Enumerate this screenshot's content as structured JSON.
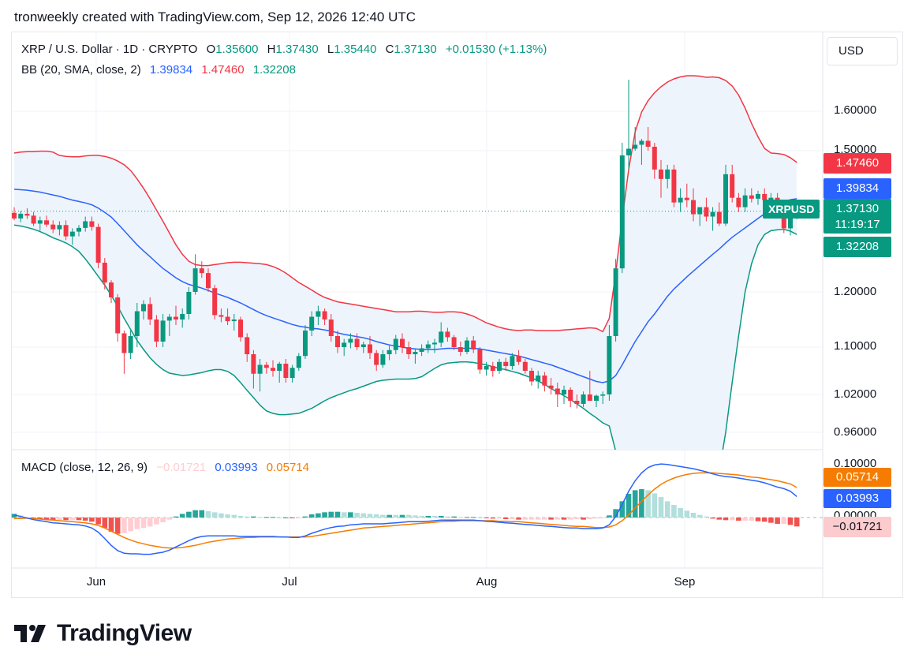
{
  "header": {
    "text": "tronweekly created with TradingView.com, Sep 12, 2026 12:40 UTC"
  },
  "legend": {
    "symbol": "XRP / U.S. Dollar · 1D · CRYPTO",
    "o_label": "O",
    "o": "1.35600",
    "h_label": "H",
    "h": "1.37430",
    "l_label": "L",
    "l": "1.35440",
    "c_label": "C",
    "c": "1.37130",
    "change": "+0.01530 (+1.13%)",
    "bb_label": "BB (20, SMA, close, 2)",
    "bb_mid": "1.39834",
    "bb_upper": "1.47460",
    "bb_lower": "1.32208",
    "macd_label": "MACD (close, 12, 26, 9)",
    "macd_hist": "−0.01721",
    "macd_value": "0.03993",
    "macd_signal": "0.05714"
  },
  "currency_button": "USD",
  "price_tags": {
    "upper": "1.47460",
    "middle": "1.39834",
    "price": "1.37130",
    "countdown": "11:19:17",
    "lower": "1.32208",
    "symbol": "XRPUSD"
  },
  "macd_tags": {
    "signal": "0.05714",
    "macd": "0.03993",
    "hist": "−0.01721"
  },
  "y_ticks": [
    "1.60000",
    "1.50000",
    "1.20000",
    "1.10000",
    "1.02000",
    "0.96000"
  ],
  "macd_ticks": [
    "0.10000",
    "0.00000"
  ],
  "x_ticks": [
    "Jun",
    "Jul",
    "Aug",
    "Sep"
  ],
  "colors": {
    "up": "#089981",
    "down": "#f23645",
    "bb_mid": "#2962ff",
    "bb_upper": "#f23645",
    "bb_lower": "#089981",
    "bb_fill": "#eef4fc",
    "macd": "#2962ff",
    "signal": "#f57c00",
    "hist_up_strong": "#26a69a",
    "hist_up_weak": "#b2dfdb",
    "hist_down_strong": "#ef5350",
    "hist_down_weak": "#ffcdd2"
  },
  "chart_data": {
    "type": "candlestick",
    "title": "XRP / U.S. Dollar · 1D · CRYPTO",
    "x_start": "2026-05-11",
    "ohlc": [
      [
        1.368,
        1.38,
        1.352,
        1.356
      ],
      [
        1.356,
        1.372,
        1.348,
        1.366
      ],
      [
        1.366,
        1.378,
        1.355,
        1.362
      ],
      [
        1.362,
        1.37,
        1.34,
        1.345
      ],
      [
        1.345,
        1.36,
        1.33,
        1.352
      ],
      [
        1.352,
        1.362,
        1.338,
        1.343
      ],
      [
        1.343,
        1.352,
        1.325,
        1.333
      ],
      [
        1.333,
        1.35,
        1.32,
        1.342
      ],
      [
        1.342,
        1.352,
        1.31,
        1.318
      ],
      [
        1.318,
        1.335,
        1.3,
        1.328
      ],
      [
        1.328,
        1.342,
        1.318,
        1.336
      ],
      [
        1.336,
        1.36,
        1.328,
        1.35
      ],
      [
        1.35,
        1.36,
        1.33,
        1.338
      ],
      [
        1.338,
        1.345,
        1.25,
        1.262
      ],
      [
        1.262,
        1.272,
        1.205,
        1.22
      ],
      [
        1.22,
        1.225,
        1.18,
        1.19
      ],
      [
        1.19,
        1.196,
        1.11,
        1.125
      ],
      [
        1.125,
        1.13,
        1.055,
        1.09
      ],
      [
        1.09,
        1.13,
        1.08,
        1.12
      ],
      [
        1.12,
        1.18,
        1.1,
        1.165
      ],
      [
        1.165,
        1.185,
        1.15,
        1.178
      ],
      [
        1.178,
        1.19,
        1.14,
        1.15
      ],
      [
        1.15,
        1.158,
        1.1,
        1.11
      ],
      [
        1.11,
        1.16,
        1.1,
        1.148
      ],
      [
        1.148,
        1.16,
        1.12,
        1.155
      ],
      [
        1.155,
        1.175,
        1.14,
        1.15
      ],
      [
        1.15,
        1.17,
        1.135,
        1.16
      ],
      [
        1.16,
        1.21,
        1.15,
        1.2
      ],
      [
        1.2,
        1.28,
        1.195,
        1.25
      ],
      [
        1.25,
        1.265,
        1.23,
        1.24
      ],
      [
        1.24,
        1.25,
        1.2,
        1.208
      ],
      [
        1.208,
        1.215,
        1.15,
        1.158
      ],
      [
        1.158,
        1.17,
        1.145,
        1.155
      ],
      [
        1.155,
        1.17,
        1.14,
        1.147
      ],
      [
        1.147,
        1.16,
        1.13,
        1.15
      ],
      [
        1.15,
        1.155,
        1.11,
        1.118
      ],
      [
        1.118,
        1.125,
        1.075,
        1.088
      ],
      [
        1.088,
        1.095,
        1.03,
        1.055
      ],
      [
        1.055,
        1.08,
        1.025,
        1.07
      ],
      [
        1.07,
        1.075,
        1.055,
        1.065
      ],
      [
        1.065,
        1.078,
        1.05,
        1.06
      ],
      [
        1.06,
        1.075,
        1.04,
        1.072
      ],
      [
        1.072,
        1.08,
        1.04,
        1.048
      ],
      [
        1.048,
        1.07,
        1.04,
        1.065
      ],
      [
        1.065,
        1.09,
        1.06,
        1.085
      ],
      [
        1.085,
        1.14,
        1.08,
        1.13
      ],
      [
        1.13,
        1.165,
        1.12,
        1.155
      ],
      [
        1.155,
        1.175,
        1.14,
        1.165
      ],
      [
        1.165,
        1.17,
        1.14,
        1.15
      ],
      [
        1.15,
        1.16,
        1.11,
        1.12
      ],
      [
        1.12,
        1.13,
        1.09,
        1.1
      ],
      [
        1.1,
        1.115,
        1.085,
        1.108
      ],
      [
        1.108,
        1.125,
        1.098,
        1.115
      ],
      [
        1.115,
        1.125,
        1.095,
        1.1
      ],
      [
        1.1,
        1.11,
        1.09,
        1.105
      ],
      [
        1.105,
        1.12,
        1.08,
        1.09
      ],
      [
        1.09,
        1.095,
        1.06,
        1.07
      ],
      [
        1.07,
        1.095,
        1.065,
        1.088
      ],
      [
        1.088,
        1.105,
        1.078,
        1.095
      ],
      [
        1.095,
        1.122,
        1.088,
        1.115
      ],
      [
        1.115,
        1.125,
        1.09,
        1.1
      ],
      [
        1.1,
        1.11,
        1.08,
        1.088
      ],
      [
        1.088,
        1.098,
        1.072,
        1.092
      ],
      [
        1.092,
        1.105,
        1.085,
        1.098
      ],
      [
        1.098,
        1.112,
        1.09,
        1.105
      ],
      [
        1.105,
        1.115,
        1.09,
        1.108
      ],
      [
        1.108,
        1.145,
        1.1,
        1.128
      ],
      [
        1.128,
        1.135,
        1.11,
        1.118
      ],
      [
        1.118,
        1.122,
        1.095,
        1.1
      ],
      [
        1.1,
        1.11,
        1.085,
        1.092
      ],
      [
        1.092,
        1.118,
        1.088,
        1.112
      ],
      [
        1.112,
        1.12,
        1.09,
        1.096
      ],
      [
        1.096,
        1.1,
        1.055,
        1.062
      ],
      [
        1.062,
        1.075,
        1.052,
        1.068
      ],
      [
        1.068,
        1.075,
        1.05,
        1.06
      ],
      [
        1.06,
        1.08,
        1.055,
        1.075
      ],
      [
        1.075,
        1.082,
        1.06,
        1.068
      ],
      [
        1.068,
        1.09,
        1.062,
        1.085
      ],
      [
        1.085,
        1.095,
        1.07,
        1.075
      ],
      [
        1.075,
        1.08,
        1.055,
        1.06
      ],
      [
        1.06,
        1.065,
        1.035,
        1.042
      ],
      [
        1.042,
        1.06,
        1.03,
        1.052
      ],
      [
        1.052,
        1.058,
        1.025,
        1.035
      ],
      [
        1.035,
        1.048,
        1.02,
        1.03
      ],
      [
        1.03,
        1.04,
        1.0,
        1.02
      ],
      [
        1.02,
        1.035,
        1.005,
        1.028
      ],
      [
        1.028,
        1.032,
        1.0,
        1.01
      ],
      [
        1.01,
        1.02,
        0.998,
        1.005
      ],
      [
        1.005,
        1.025,
        1.0,
        1.02
      ],
      [
        1.02,
        1.06,
        1.01,
        1.01
      ],
      [
        1.01,
        1.02,
        1.0,
        1.018
      ],
      [
        1.018,
        1.025,
        1.005,
        1.02
      ],
      [
        1.02,
        1.14,
        1.01,
        1.12
      ],
      [
        1.12,
        1.27,
        1.11,
        1.25
      ],
      [
        1.25,
        1.52,
        1.24,
        1.49
      ],
      [
        1.49,
        1.68,
        1.46,
        1.505
      ],
      [
        1.505,
        1.56,
        1.5,
        1.515
      ],
      [
        1.515,
        1.53,
        1.47,
        1.525
      ],
      [
        1.525,
        1.56,
        1.5,
        1.51
      ],
      [
        1.51,
        1.52,
        1.44,
        1.46
      ],
      [
        1.46,
        1.48,
        1.4,
        1.44
      ],
      [
        1.44,
        1.47,
        1.42,
        1.46
      ],
      [
        1.46,
        1.47,
        1.38,
        1.39
      ],
      [
        1.39,
        1.42,
        1.37,
        1.4
      ],
      [
        1.4,
        1.43,
        1.38,
        1.395
      ],
      [
        1.395,
        1.42,
        1.35,
        1.365
      ],
      [
        1.365,
        1.38,
        1.34,
        1.38
      ],
      [
        1.38,
        1.4,
        1.35,
        1.36
      ],
      [
        1.36,
        1.38,
        1.33,
        1.37
      ],
      [
        1.37,
        1.39,
        1.34,
        1.345
      ],
      [
        1.345,
        1.47,
        1.34,
        1.45
      ],
      [
        1.45,
        1.47,
        1.39,
        1.4
      ],
      [
        1.4,
        1.41,
        1.37,
        1.38
      ],
      [
        1.38,
        1.42,
        1.37,
        1.405
      ],
      [
        1.405,
        1.42,
        1.39,
        1.398
      ],
      [
        1.398,
        1.415,
        1.385,
        1.408
      ],
      [
        1.408,
        1.42,
        1.39,
        1.395
      ],
      [
        1.395,
        1.41,
        1.38,
        1.4
      ],
      [
        1.4,
        1.41,
        1.36,
        1.37
      ],
      [
        1.37,
        1.375,
        1.325,
        1.335
      ],
      [
        1.335,
        1.36,
        1.32,
        1.356
      ],
      [
        1.356,
        1.3743,
        1.3544,
        1.3713
      ]
    ],
    "bb_mid": [
      1.418,
      1.417,
      1.416,
      1.414,
      1.412,
      1.409,
      1.406,
      1.403,
      1.399,
      1.395,
      1.392,
      1.389,
      1.385,
      1.378,
      1.369,
      1.359,
      1.345,
      1.33,
      1.315,
      1.3,
      1.287,
      1.275,
      1.262,
      1.25,
      1.24,
      1.23,
      1.222,
      1.216,
      1.212,
      1.208,
      1.203,
      1.198,
      1.194,
      1.19,
      1.185,
      1.18,
      1.174,
      1.168,
      1.162,
      1.157,
      1.153,
      1.149,
      1.145,
      1.141,
      1.138,
      1.136,
      1.134,
      1.133,
      1.131,
      1.129,
      1.126,
      1.123,
      1.121,
      1.119,
      1.117,
      1.114,
      1.11,
      1.107,
      1.104,
      1.102,
      1.1,
      1.098,
      1.097,
      1.096,
      1.096,
      1.096,
      1.097,
      1.098,
      1.098,
      1.098,
      1.098,
      1.098,
      1.097,
      1.095,
      1.093,
      1.091,
      1.089,
      1.087,
      1.085,
      1.082,
      1.079,
      1.076,
      1.073,
      1.07,
      1.066,
      1.062,
      1.058,
      1.054,
      1.05,
      1.046,
      1.042,
      1.04,
      1.043,
      1.052,
      1.07,
      1.09,
      1.11,
      1.128,
      1.146,
      1.16,
      1.176,
      1.192,
      1.206,
      1.219,
      1.232,
      1.244,
      1.256,
      1.268,
      1.28,
      1.291,
      1.304,
      1.316,
      1.326,
      1.336,
      1.346,
      1.356,
      1.366,
      1.376,
      1.384,
      1.392,
      1.396,
      1.398
    ],
    "bb_upper": [
      1.495,
      1.497,
      1.498,
      1.498,
      1.499,
      1.499,
      1.497,
      1.49,
      1.488,
      1.487,
      1.487,
      1.489,
      1.49,
      1.49,
      1.488,
      1.484,
      1.478,
      1.47,
      1.458,
      1.44,
      1.42,
      1.398,
      1.374,
      1.35,
      1.325,
      1.3,
      1.28,
      1.265,
      1.258,
      1.256,
      1.256,
      1.258,
      1.26,
      1.262,
      1.263,
      1.263,
      1.262,
      1.261,
      1.26,
      1.258,
      1.254,
      1.248,
      1.24,
      1.23,
      1.22,
      1.212,
      1.204,
      1.196,
      1.19,
      1.186,
      1.182,
      1.18,
      1.178,
      1.176,
      1.174,
      1.172,
      1.17,
      1.168,
      1.166,
      1.164,
      1.164,
      1.164,
      1.165,
      1.165,
      1.164,
      1.163,
      1.163,
      1.164,
      1.164,
      1.163,
      1.16,
      1.156,
      1.15,
      1.144,
      1.14,
      1.136,
      1.133,
      1.131,
      1.13,
      1.131,
      1.131,
      1.13,
      1.13,
      1.13,
      1.13,
      1.131,
      1.132,
      1.133,
      1.134,
      1.135,
      1.134,
      1.128,
      1.152,
      1.24,
      1.355,
      1.46,
      1.548,
      1.598,
      1.627,
      1.647,
      1.662,
      1.674,
      1.682,
      1.687,
      1.69,
      1.69,
      1.689,
      1.686,
      1.687,
      1.685,
      1.678,
      1.664,
      1.641,
      1.608,
      1.569,
      1.535,
      1.506,
      1.495,
      1.494,
      1.492,
      1.485,
      1.475
    ],
    "bb_lower": [
      1.342,
      1.34,
      1.337,
      1.333,
      1.328,
      1.322,
      1.315,
      1.31,
      1.304,
      1.296,
      1.286,
      1.27,
      1.252,
      1.233,
      1.214,
      1.194,
      1.174,
      1.152,
      1.132,
      1.112,
      1.096,
      1.082,
      1.071,
      1.062,
      1.056,
      1.054,
      1.052,
      1.053,
      1.055,
      1.057,
      1.06,
      1.062,
      1.062,
      1.059,
      1.052,
      1.04,
      1.027,
      1.015,
      1.003,
      0.994,
      0.99,
      0.988,
      0.988,
      0.989,
      0.99,
      0.994,
      0.998,
      1.004,
      1.01,
      1.015,
      1.019,
      1.023,
      1.027,
      1.03,
      1.034,
      1.038,
      1.042,
      1.044,
      1.045,
      1.046,
      1.046,
      1.046,
      1.047,
      1.05,
      1.057,
      1.064,
      1.07,
      1.073,
      1.074,
      1.075,
      1.075,
      1.074,
      1.072,
      1.07,
      1.067,
      1.064,
      1.062,
      1.059,
      1.056,
      1.052,
      1.048,
      1.043,
      1.037,
      1.03,
      1.024,
      1.018,
      1.012,
      1.005,
      0.998,
      0.99,
      0.983,
      0.975,
      0.97,
      0.93,
      0.88,
      0.82,
      0.76,
      0.72,
      0.7,
      0.69,
      0.69,
      0.7,
      0.72,
      0.75,
      0.775,
      0.8,
      0.823,
      0.845,
      0.872,
      0.898,
      0.96,
      1.04,
      1.12,
      1.2,
      1.26,
      1.3,
      1.322,
      1.33,
      1.332,
      1.333,
      1.329,
      1.322
    ],
    "macd": [
      0.005,
      0.002,
      -0.001,
      -0.004,
      -0.006,
      -0.008,
      -0.01,
      -0.011,
      -0.012,
      -0.013,
      -0.014,
      -0.016,
      -0.02,
      -0.028,
      -0.04,
      -0.053,
      -0.063,
      -0.068,
      -0.069,
      -0.069,
      -0.07,
      -0.07,
      -0.068,
      -0.066,
      -0.062,
      -0.056,
      -0.05,
      -0.044,
      -0.039,
      -0.036,
      -0.035,
      -0.035,
      -0.035,
      -0.035,
      -0.035,
      -0.036,
      -0.036,
      -0.036,
      -0.036,
      -0.036,
      -0.036,
      -0.037,
      -0.037,
      -0.038,
      -0.038,
      -0.035,
      -0.03,
      -0.026,
      -0.022,
      -0.019,
      -0.017,
      -0.016,
      -0.014,
      -0.013,
      -0.012,
      -0.012,
      -0.012,
      -0.012,
      -0.011,
      -0.01,
      -0.009,
      -0.008,
      -0.008,
      -0.008,
      -0.007,
      -0.006,
      -0.005,
      -0.005,
      -0.005,
      -0.005,
      -0.005,
      -0.005,
      -0.006,
      -0.007,
      -0.008,
      -0.009,
      -0.01,
      -0.011,
      -0.012,
      -0.013,
      -0.014,
      -0.015,
      -0.016,
      -0.017,
      -0.018,
      -0.019,
      -0.02,
      -0.02,
      -0.021,
      -0.021,
      -0.021,
      -0.02,
      -0.014,
      0.002,
      0.025,
      0.05,
      0.07,
      0.085,
      0.095,
      0.1,
      0.102,
      0.101,
      0.099,
      0.097,
      0.095,
      0.093,
      0.09,
      0.087,
      0.083,
      0.08,
      0.078,
      0.077,
      0.075,
      0.073,
      0.071,
      0.069,
      0.066,
      0.062,
      0.058,
      0.055,
      0.05,
      0.04
    ],
    "signal": [
      -0.002,
      -0.002,
      -0.001,
      -0.002,
      -0.003,
      -0.004,
      -0.005,
      -0.006,
      -0.007,
      -0.008,
      -0.009,
      -0.01,
      -0.012,
      -0.015,
      -0.02,
      -0.026,
      -0.032,
      -0.038,
      -0.043,
      -0.047,
      -0.05,
      -0.053,
      -0.055,
      -0.057,
      -0.058,
      -0.058,
      -0.057,
      -0.055,
      -0.053,
      -0.05,
      -0.047,
      -0.045,
      -0.043,
      -0.041,
      -0.04,
      -0.039,
      -0.038,
      -0.038,
      -0.037,
      -0.037,
      -0.037,
      -0.037,
      -0.037,
      -0.037,
      -0.037,
      -0.037,
      -0.036,
      -0.034,
      -0.032,
      -0.03,
      -0.028,
      -0.026,
      -0.024,
      -0.022,
      -0.02,
      -0.019,
      -0.018,
      -0.017,
      -0.016,
      -0.015,
      -0.014,
      -0.013,
      -0.012,
      -0.011,
      -0.01,
      -0.009,
      -0.008,
      -0.007,
      -0.007,
      -0.006,
      -0.006,
      -0.006,
      -0.006,
      -0.006,
      -0.006,
      -0.007,
      -0.007,
      -0.008,
      -0.008,
      -0.009,
      -0.01,
      -0.011,
      -0.012,
      -0.013,
      -0.014,
      -0.015,
      -0.016,
      -0.017,
      -0.017,
      -0.018,
      -0.019,
      -0.019,
      -0.018,
      -0.014,
      -0.006,
      0.005,
      0.018,
      0.031,
      0.043,
      0.054,
      0.063,
      0.07,
      0.075,
      0.079,
      0.082,
      0.084,
      0.085,
      0.085,
      0.085,
      0.084,
      0.083,
      0.082,
      0.081,
      0.079,
      0.077,
      0.076,
      0.074,
      0.072,
      0.07,
      0.067,
      0.064,
      0.057
    ]
  }
}
